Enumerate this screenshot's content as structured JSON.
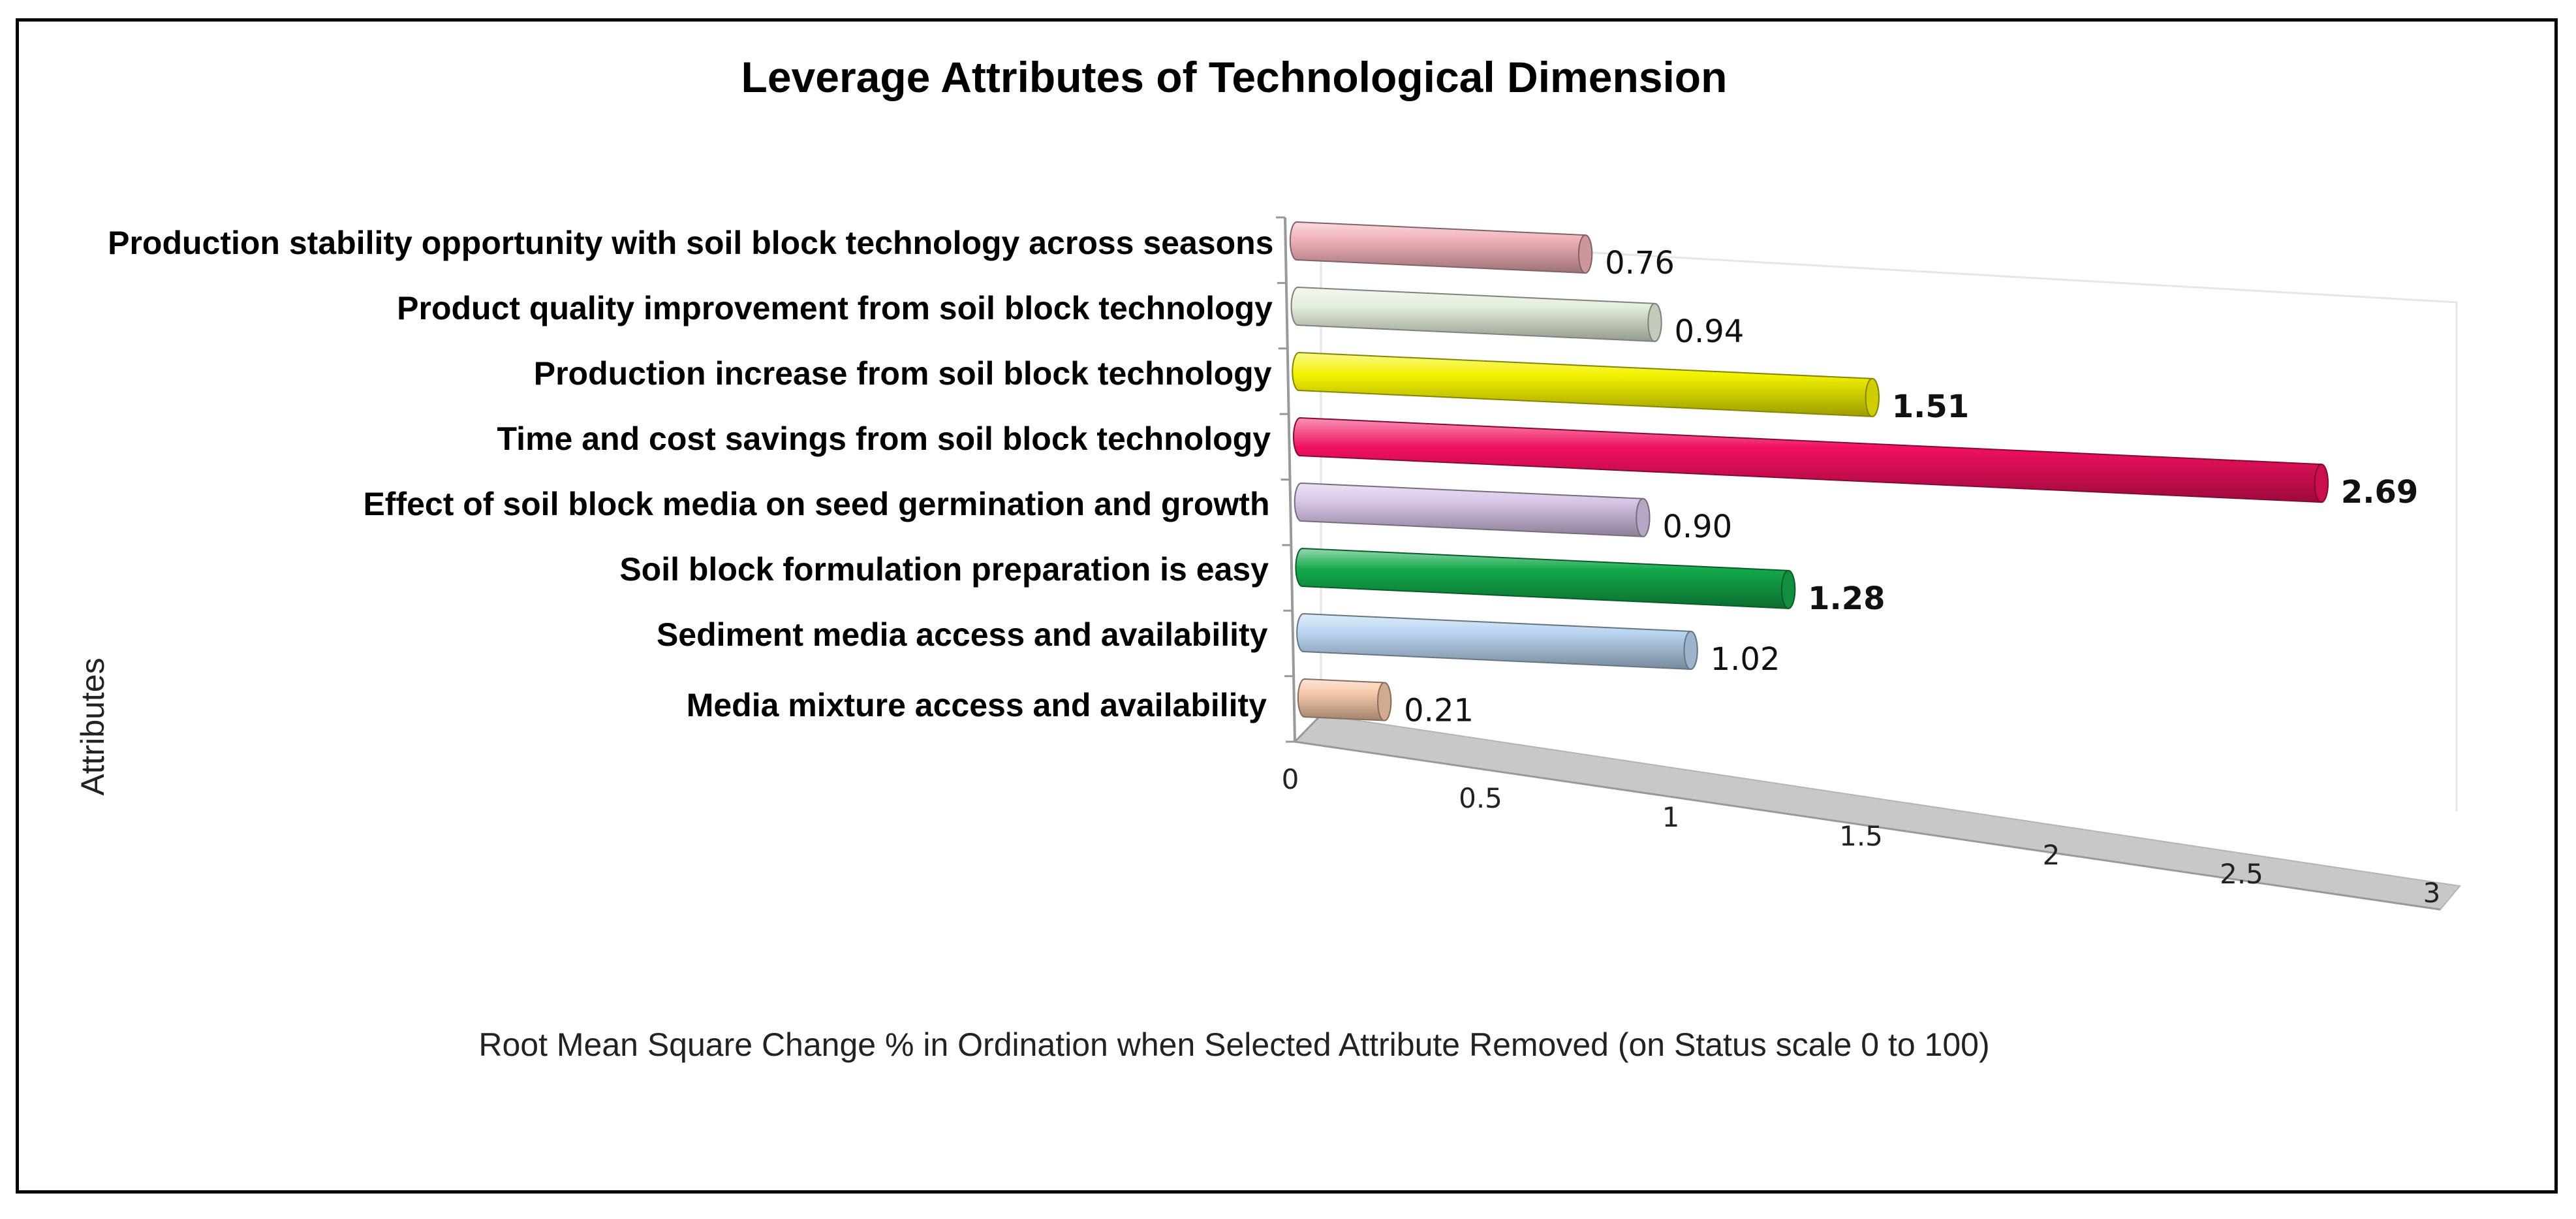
{
  "chart_data": {
    "type": "bar",
    "orientation": "horizontal",
    "style": "3d-cylinder",
    "title": "Leverage Attributes of Technological Dimension",
    "xlabel": "Root Mean Square Change % in Ordination when Selected Attribute Removed (on Status scale 0 to 100)",
    "ylabel": "Attributes",
    "xlim": [
      0,
      3
    ],
    "xticks": [
      "0",
      "0.5",
      "1",
      "1.5",
      "2",
      "2.5",
      "3"
    ],
    "grid": false,
    "legend": "none",
    "categories": [
      "Media mixture access and availability",
      "Sediment media access and availability",
      "Soil block formulation preparation is easy",
      "Effect of soil block media on seed germination and growth",
      "Time and cost savings from soil block technology",
      "Production increase from soil block technology",
      "Product quality improvement from soil block technology",
      "Production stability opportunity with soil block technology across seasons"
    ],
    "values": [
      0.21,
      1.02,
      1.28,
      0.9,
      2.69,
      1.51,
      0.94,
      0.76
    ],
    "data_labels": [
      "0.21",
      "1.02",
      "1.28",
      "0.90",
      "2.69",
      "1.51",
      "0.94",
      "0.76"
    ],
    "bold_labels": [
      false,
      false,
      true,
      false,
      true,
      true,
      false,
      false
    ],
    "colors": [
      "#F6C8A8",
      "#B8D4F0",
      "#12A84A",
      "#D6C4E6",
      "#F0105F",
      "#F2F200",
      "#E4EEDC",
      "#F0B0B8"
    ]
  }
}
